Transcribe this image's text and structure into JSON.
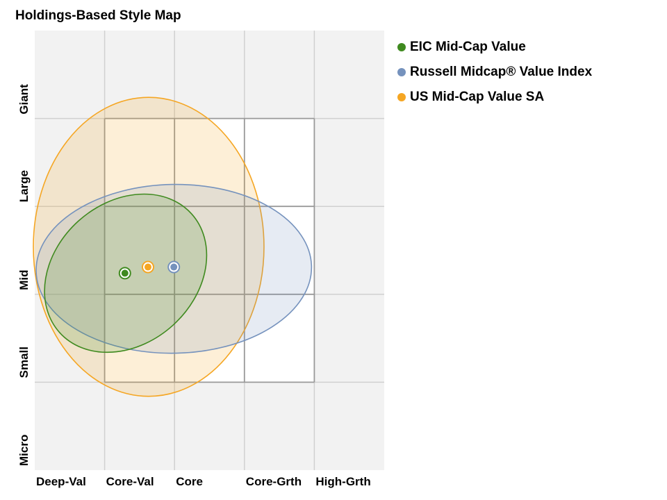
{
  "chart_data": {
    "type": "scatter",
    "title": "Holdings-Based Style Map",
    "xlabel": "",
    "ylabel": "",
    "xlim": [
      0,
      5
    ],
    "ylim": [
      0,
      5
    ],
    "x_tick_labels": [
      "Deep-Val",
      "Core-Val",
      "Core",
      "Core-Grth",
      "High-Grth"
    ],
    "y_tick_labels": [
      "Micro",
      "Small",
      "Mid",
      "Large",
      "Giant"
    ],
    "grid": true,
    "legend_position": "top-right",
    "series": [
      {
        "name": "EIC Mid-Cap Value",
        "color": "#3f8a1f",
        "point": {
          "x": 1.29,
          "y": 2.24
        },
        "ellipse": {
          "cx": 1.3,
          "cy": 2.24,
          "a": 1.27,
          "b": 0.8,
          "angle": -42
        }
      },
      {
        "name": "Russell Midcap® Value Index",
        "color": "#7592bd",
        "point": {
          "x": 1.99,
          "y": 2.31
        },
        "ellipse": {
          "cx": 1.99,
          "cy": 2.29,
          "a": 1.97,
          "b": 0.96,
          "angle": -1
        }
      },
      {
        "name": "US Mid-Cap Value SA",
        "color": "#f5a623",
        "point": {
          "x": 1.62,
          "y": 2.31
        },
        "ellipse": {
          "cx": 1.63,
          "cy": 2.54,
          "a": 1.65,
          "b": 1.7,
          "angle": 0
        }
      }
    ]
  }
}
